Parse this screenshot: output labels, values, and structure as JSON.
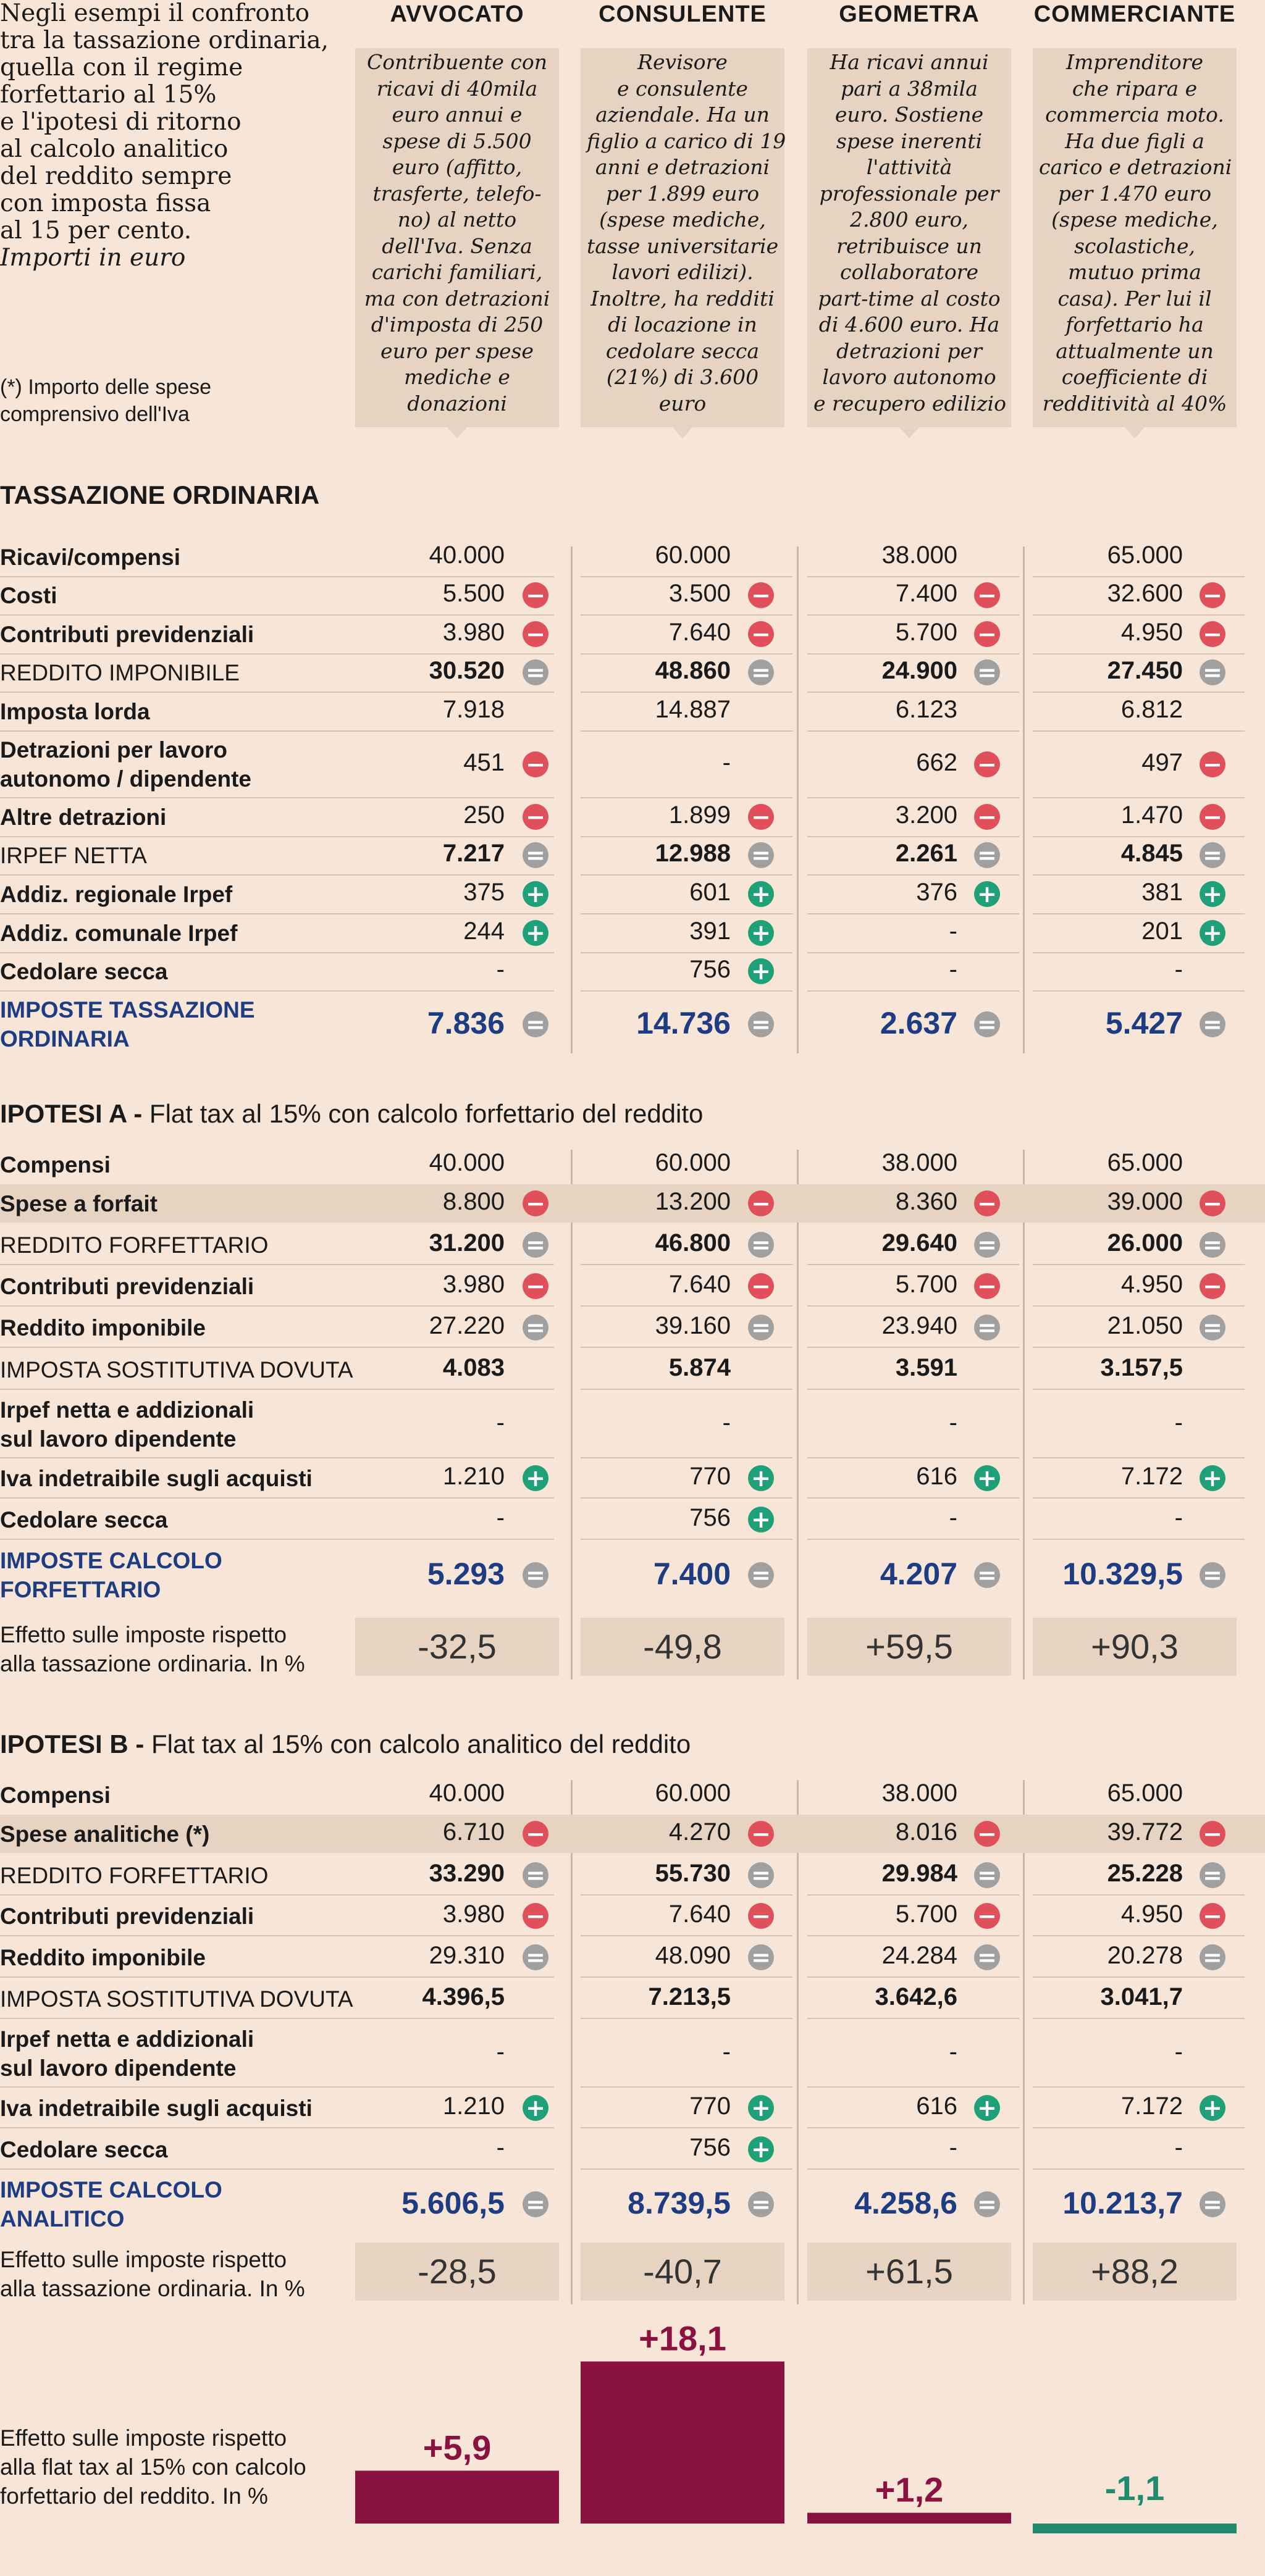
{
  "intro": {
    "lines": [
      "Negli esempi il confronto",
      "tra la tassazione ordinaria,",
      "quella con il regime",
      "forfettario al 15%",
      "e l'ipotesi di ritorno",
      "al calcolo analitico",
      "del reddito sempre",
      "con imposta fissa",
      "al 15 per cento."
    ],
    "units": "Importi in euro",
    "note_lines": [
      "(*) Importo delle spese",
      "comprensivo dell'Iva"
    ]
  },
  "columns": [
    {
      "name": "AVVOCATO",
      "desc": [
        "Contribuente con",
        "ricavi di 40mila",
        "euro annui e",
        "spese di 5.500",
        "euro (affitto,",
        "trasferte, telefo-",
        "no) al netto",
        "dell'Iva. Senza",
        "carichi familiari,",
        "ma con detrazioni",
        "d'imposta di 250",
        "euro per spese",
        "mediche e",
        "donazioni"
      ]
    },
    {
      "name": "CONSULENTE",
      "desc": [
        "Revisore",
        "e consulente",
        "aziendale. Ha un",
        "figlio a carico di 19",
        "anni e detrazioni",
        "per 1.899 euro",
        "(spese mediche,",
        "tasse universitarie",
        "lavori edilizi).",
        "Inoltre, ha redditi",
        "di locazione in",
        "cedolare secca",
        "(21%) di 3.600",
        "euro"
      ]
    },
    {
      "name": "GEOMETRA",
      "desc": [
        "Ha ricavi annui",
        "pari a 38mila",
        "euro. Sostiene",
        "spese inerenti",
        "l'attività",
        "professionale per",
        "2.800 euro,",
        "retribuisce un",
        "collaboratore",
        "part-time al costo",
        "di 4.600 euro. Ha",
        "detrazioni per",
        "lavoro autonomo",
        "e recupero edilizio"
      ]
    },
    {
      "name": "COMMERCIANTE",
      "desc": [
        "Imprenditore",
        "che ripara e",
        "commercia moto.",
        "Ha due figli a",
        "carico e detrazioni",
        "per 1.470 euro",
        "(spese mediche,",
        "scolastiche,",
        "mutuo prima",
        "casa). Per lui il",
        "forfettario ha",
        "attualmente un",
        "coefficiente di",
        "redditività al 40%"
      ]
    }
  ],
  "sections": [
    {
      "title_bold": "TASSAZIONE ORDINARIA",
      "title_rest": "",
      "rows": [
        {
          "label": [
            "Ricavi/compensi"
          ],
          "style": "bold",
          "values": [
            "40.000",
            "60.000",
            "38.000",
            "65.000"
          ],
          "icons": [
            "",
            "",
            "",
            ""
          ],
          "vweight": "normal"
        },
        {
          "label": [
            "Costi"
          ],
          "style": "bold",
          "values": [
            "5.500",
            "3.500",
            "7.400",
            "32.600"
          ],
          "icons": [
            "minus",
            "minus",
            "minus",
            "minus"
          ],
          "vweight": "normal"
        },
        {
          "label": [
            "Contributi previdenziali"
          ],
          "style": "bold",
          "values": [
            "3.980",
            "7.640",
            "5.700",
            "4.950"
          ],
          "icons": [
            "minus",
            "minus",
            "minus",
            "minus"
          ],
          "vweight": "normal"
        },
        {
          "label": [
            "REDDITO IMPONIBILE"
          ],
          "style": "normal",
          "values": [
            "30.520",
            "48.860",
            "24.900",
            "27.450"
          ],
          "icons": [
            "eq",
            "eq",
            "eq",
            "eq"
          ],
          "vweight": "bold"
        },
        {
          "label": [
            "Imposta lorda"
          ],
          "style": "bold",
          "values": [
            "7.918",
            "14.887",
            "6.123",
            "6.812"
          ],
          "icons": [
            "",
            "",
            "",
            ""
          ],
          "vweight": "normal"
        },
        {
          "label": [
            "Detrazioni per lavoro",
            "autonomo / dipendente"
          ],
          "style": "bold",
          "values": [
            "451",
            "-",
            "662",
            "497"
          ],
          "icons": [
            "minus",
            "",
            "minus",
            "minus"
          ],
          "vweight": "normal"
        },
        {
          "label": [
            "Altre detrazioni"
          ],
          "style": "bold",
          "values": [
            "250",
            "1.899",
            "3.200",
            "1.470"
          ],
          "icons": [
            "minus",
            "minus",
            "minus",
            "minus"
          ],
          "vweight": "normal"
        },
        {
          "label": [
            "IRPEF NETTA"
          ],
          "style": "normal",
          "values": [
            "7.217",
            "12.988",
            "2.261",
            "4.845"
          ],
          "icons": [
            "eq",
            "eq",
            "eq",
            "eq"
          ],
          "vweight": "bold"
        },
        {
          "label": [
            "Addiz. regionale Irpef"
          ],
          "style": "bold",
          "values": [
            "375",
            "601",
            "376",
            "381"
          ],
          "icons": [
            "plus",
            "plus",
            "plus",
            "plus"
          ],
          "vweight": "normal"
        },
        {
          "label": [
            "Addiz. comunale Irpef"
          ],
          "style": "bold",
          "values": [
            "244",
            "391",
            "-",
            "201"
          ],
          "icons": [
            "plus",
            "plus",
            "",
            "plus"
          ],
          "vweight": "normal"
        },
        {
          "label": [
            "Cedolare secca"
          ],
          "style": "bold",
          "values": [
            "-",
            "756",
            "-",
            "-"
          ],
          "icons": [
            "",
            "plus",
            "",
            ""
          ],
          "vweight": "normal"
        },
        {
          "label": [
            "IMPOSTE TASSAZIONE",
            "ORDINARIA"
          ],
          "style": "blue",
          "values": [
            "7.836",
            "14.736",
            "2.637",
            "5.427"
          ],
          "icons": [
            "eq",
            "eq",
            "eq",
            "eq"
          ],
          "vweight": "total"
        }
      ]
    },
    {
      "title_bold": "IPOTESI A - ",
      "title_rest": "Flat tax al 15% con calcolo forfettario del reddito",
      "rows": [
        {
          "label": [
            "Compensi"
          ],
          "style": "bold",
          "values": [
            "40.000",
            "60.000",
            "38.000",
            "65.000"
          ],
          "icons": [
            "",
            "",
            "",
            ""
          ],
          "vweight": "normal"
        },
        {
          "label": [
            "Spese a forfait"
          ],
          "style": "bold",
          "values": [
            "8.800",
            "13.200",
            "8.360",
            "39.000"
          ],
          "icons": [
            "minus",
            "minus",
            "minus",
            "minus"
          ],
          "vweight": "normal",
          "band": true
        },
        {
          "label": [
            "REDDITO FORFETTARIO"
          ],
          "style": "normal",
          "values": [
            "31.200",
            "46.800",
            "29.640",
            "26.000"
          ],
          "icons": [
            "eq",
            "eq",
            "eq",
            "eq"
          ],
          "vweight": "bold"
        },
        {
          "label": [
            "Contributi previdenziali"
          ],
          "style": "bold",
          "values": [
            "3.980",
            "7.640",
            "5.700",
            "4.950"
          ],
          "icons": [
            "minus",
            "minus",
            "minus",
            "minus"
          ],
          "vweight": "normal"
        },
        {
          "label": [
            "Reddito imponibile"
          ],
          "style": "bold",
          "values": [
            "27.220",
            "39.160",
            "23.940",
            "21.050"
          ],
          "icons": [
            "eq",
            "eq",
            "eq",
            "eq"
          ],
          "vweight": "normal"
        },
        {
          "label": [
            "IMPOSTA SOSTITUTIVA DOVUTA"
          ],
          "style": "normal",
          "values": [
            "4.083",
            "5.874",
            "3.591",
            "3.157,5"
          ],
          "icons": [
            "",
            "",
            "",
            ""
          ],
          "vweight": "bold"
        },
        {
          "label": [
            "Irpef netta e addizionali",
            "sul lavoro dipendente"
          ],
          "style": "bold",
          "values": [
            "-",
            "-",
            "-",
            "-"
          ],
          "icons": [
            "",
            "",
            "",
            ""
          ],
          "vweight": "normal"
        },
        {
          "label": [
            "Iva indetraibile sugli acquisti"
          ],
          "style": "bold",
          "values": [
            "1.210",
            "770",
            "616",
            "7.172"
          ],
          "icons": [
            "plus",
            "plus",
            "plus",
            "plus"
          ],
          "vweight": "normal"
        },
        {
          "label": [
            "Cedolare secca"
          ],
          "style": "bold",
          "values": [
            "-",
            "756",
            "-",
            "-"
          ],
          "icons": [
            "",
            "plus",
            "",
            ""
          ],
          "vweight": "normal"
        },
        {
          "label": [
            "IMPOSTE CALCOLO",
            "FORFETTARIO"
          ],
          "style": "blue",
          "values": [
            "5.293",
            "7.400",
            "4.207",
            "10.329,5"
          ],
          "icons": [
            "eq",
            "eq",
            "eq",
            "eq"
          ],
          "vweight": "total"
        }
      ],
      "effect_label": [
        "Effetto sulle imposte rispetto",
        "alla tassazione ordinaria. In %"
      ],
      "effects": [
        "-32,5",
        "-49,8",
        "+59,5",
        "+90,3"
      ]
    },
    {
      "title_bold": "IPOTESI B - ",
      "title_rest": "Flat tax al 15% con calcolo analitico del reddito",
      "rows": [
        {
          "label": [
            "Compensi"
          ],
          "style": "bold",
          "values": [
            "40.000",
            "60.000",
            "38.000",
            "65.000"
          ],
          "icons": [
            "",
            "",
            "",
            ""
          ],
          "vweight": "normal"
        },
        {
          "label": [
            "Spese analitiche (*)"
          ],
          "style": "bold",
          "values": [
            "6.710",
            "4.270",
            "8.016",
            "39.772"
          ],
          "icons": [
            "minus",
            "minus",
            "minus",
            "minus"
          ],
          "vweight": "normal",
          "band": true
        },
        {
          "label": [
            "REDDITO FORFETTARIO"
          ],
          "style": "normal",
          "values": [
            "33.290",
            "55.730",
            "29.984",
            "25.228"
          ],
          "icons": [
            "eq",
            "eq",
            "eq",
            "eq"
          ],
          "vweight": "bold"
        },
        {
          "label": [
            "Contributi previdenziali"
          ],
          "style": "bold",
          "values": [
            "3.980",
            "7.640",
            "5.700",
            "4.950"
          ],
          "icons": [
            "minus",
            "minus",
            "minus",
            "minus"
          ],
          "vweight": "normal"
        },
        {
          "label": [
            "Reddito imponibile"
          ],
          "style": "bold",
          "values": [
            "29.310",
            "48.090",
            "24.284",
            "20.278"
          ],
          "icons": [
            "eq",
            "eq",
            "eq",
            "eq"
          ],
          "vweight": "normal"
        },
        {
          "label": [
            "IMPOSTA SOSTITUTIVA DOVUTA"
          ],
          "style": "normal",
          "values": [
            "4.396,5",
            "7.213,5",
            "3.642,6",
            "3.041,7"
          ],
          "icons": [
            "",
            "",
            "",
            ""
          ],
          "vweight": "bold"
        },
        {
          "label": [
            "Irpef netta e addizionali",
            "sul lavoro dipendente"
          ],
          "style": "bold",
          "values": [
            "-",
            "-",
            "-",
            "-"
          ],
          "icons": [
            "",
            "",
            "",
            ""
          ],
          "vweight": "normal"
        },
        {
          "label": [
            "Iva indetraibile sugli acquisti"
          ],
          "style": "bold",
          "values": [
            "1.210",
            "770",
            "616",
            "7.172"
          ],
          "icons": [
            "plus",
            "plus",
            "plus",
            "plus"
          ],
          "vweight": "normal"
        },
        {
          "label": [
            "Cedolare secca"
          ],
          "style": "bold",
          "values": [
            "-",
            "756",
            "-",
            "-"
          ],
          "icons": [
            "",
            "plus",
            "",
            ""
          ],
          "vweight": "normal"
        },
        {
          "label": [
            "IMPOSTE CALCOLO",
            "ANALITICO"
          ],
          "style": "blue",
          "values": [
            "5.606,5",
            "8.739,5",
            "4.258,6",
            "10.213,7"
          ],
          "icons": [
            "eq",
            "eq",
            "eq",
            "eq"
          ],
          "vweight": "total"
        }
      ],
      "effect_label": [
        "Effetto sulle imposte rispetto",
        "alla tassazione ordinaria. In %"
      ],
      "effects": [
        "-28,5",
        "-40,7",
        "+61,5",
        "+88,2"
      ]
    }
  ],
  "chart_data": {
    "type": "bar",
    "categories": [
      "AVVOCATO",
      "CONSULENTE",
      "GEOMETRA",
      "COMMERCIANTE"
    ],
    "values": [
      5.9,
      18.1,
      1.2,
      -1.1
    ],
    "value_labels": [
      "+5,9",
      "+18,1",
      "+1,2",
      "-1,1"
    ],
    "label": [
      "Effetto sulle imposte rispetto",
      "alla flat tax al 15% con calcolo",
      "forfettario del reddito. In %"
    ],
    "colors": {
      "positive": "#8a1240",
      "negative": "#1e8a6e"
    }
  },
  "colors": {
    "background": "#f7e6d8",
    "panel": "#e6d3c1",
    "blue": "#1e3c82",
    "minus": "#e0505a",
    "equals": "#a0a0a0",
    "plus": "#1fa078"
  },
  "icon_names": {
    "minus": "minus-circle-icon",
    "eq": "equals-circle-icon",
    "plus": "plus-circle-icon"
  }
}
